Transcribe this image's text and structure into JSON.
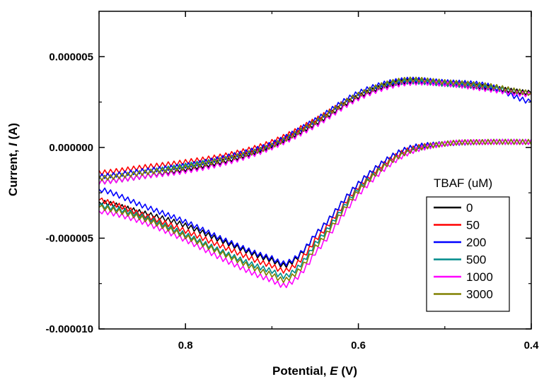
{
  "chart_data": {
    "type": "line",
    "xlabel": {
      "prefix": "Potential, ",
      "symbol": "E",
      "suffix": " (V)"
    },
    "ylabel": {
      "prefix": "Current, ",
      "symbol": "I",
      "suffix": " (A)"
    },
    "xlim": [
      0.9,
      0.4
    ],
    "ylim": [
      -1e-05,
      7.5e-06
    ],
    "x_ticks": [
      {
        "value": 0.8,
        "label": "0.8"
      },
      {
        "value": 0.6,
        "label": "0.6"
      },
      {
        "value": 0.4,
        "label": "0.4"
      }
    ],
    "y_ticks": [
      {
        "value": 5e-06,
        "label": "0.000005"
      },
      {
        "value": 0.0,
        "label": "0.000000"
      },
      {
        "value": -5e-06,
        "label": "-0.000005"
      },
      {
        "value": -1e-05,
        "label": "-0.000010"
      }
    ],
    "legend": {
      "title": "TBAF (uM)",
      "position": "right"
    },
    "series": [
      {
        "name": "0",
        "color": "#000000",
        "forward": [
          [
            0.9,
            -1.9e-06
          ],
          [
            0.85,
            -1.6e-06
          ],
          [
            0.8,
            -1.2e-06
          ],
          [
            0.75,
            -7e-07
          ],
          [
            0.7,
            1e-07
          ],
          [
            0.65,
            1.3e-06
          ],
          [
            0.6,
            2.8e-06
          ],
          [
            0.55,
            3.6e-06
          ],
          [
            0.5,
            3.5e-06
          ],
          [
            0.45,
            3.3e-06
          ],
          [
            0.4,
            3e-06
          ]
        ],
        "reverse": [
          [
            0.4,
            3e-07
          ],
          [
            0.45,
            3e-07
          ],
          [
            0.5,
            2e-07
          ],
          [
            0.55,
            -2e-07
          ],
          [
            0.6,
            -2e-06
          ],
          [
            0.65,
            -4.8e-06
          ],
          [
            0.68,
            -6.4e-06
          ],
          [
            0.7,
            -6.2e-06
          ],
          [
            0.75,
            -5.3e-06
          ],
          [
            0.8,
            -4.3e-06
          ],
          [
            0.85,
            -3.6e-06
          ],
          [
            0.9,
            -3e-06
          ]
        ]
      },
      {
        "name": "50",
        "color": "#ff0000",
        "forward": [
          [
            0.9,
            -1.4e-06
          ],
          [
            0.85,
            -1.1e-06
          ],
          [
            0.8,
            -8e-07
          ],
          [
            0.75,
            -4e-07
          ],
          [
            0.7,
            3e-07
          ],
          [
            0.65,
            1.5e-06
          ],
          [
            0.6,
            2.9e-06
          ],
          [
            0.55,
            3.6e-06
          ],
          [
            0.5,
            3.5e-06
          ],
          [
            0.45,
            3.3e-06
          ],
          [
            0.4,
            3e-06
          ]
        ],
        "reverse": [
          [
            0.4,
            3e-07
          ],
          [
            0.45,
            3e-07
          ],
          [
            0.5,
            2e-07
          ],
          [
            0.55,
            -3e-07
          ],
          [
            0.6,
            -2.2e-06
          ],
          [
            0.65,
            -5.1e-06
          ],
          [
            0.68,
            -6.7e-06
          ],
          [
            0.7,
            -6.5e-06
          ],
          [
            0.75,
            -5.6e-06
          ],
          [
            0.8,
            -4.6e-06
          ],
          [
            0.85,
            -3.7e-06
          ],
          [
            0.9,
            -2.9e-06
          ]
        ]
      },
      {
        "name": "200",
        "color": "#0000ff",
        "forward": [
          [
            0.9,
            -1.6e-06
          ],
          [
            0.85,
            -1.3e-06
          ],
          [
            0.8,
            -1e-06
          ],
          [
            0.75,
            -5e-07
          ],
          [
            0.7,
            2e-07
          ],
          [
            0.65,
            1.5e-06
          ],
          [
            0.6,
            3e-06
          ],
          [
            0.55,
            3.7e-06
          ],
          [
            0.5,
            3.6e-06
          ],
          [
            0.45,
            3.4e-06
          ],
          [
            0.4,
            2.5e-06
          ]
        ],
        "reverse": [
          [
            0.4,
            3e-07
          ],
          [
            0.45,
            3e-07
          ],
          [
            0.5,
            2e-07
          ],
          [
            0.55,
            -2e-07
          ],
          [
            0.6,
            -2e-06
          ],
          [
            0.65,
            -4.8e-06
          ],
          [
            0.68,
            -6.3e-06
          ],
          [
            0.7,
            -6.1e-06
          ],
          [
            0.75,
            -5.2e-06
          ],
          [
            0.8,
            -4.1e-06
          ],
          [
            0.85,
            -3.2e-06
          ],
          [
            0.9,
            -2.3e-06
          ]
        ]
      },
      {
        "name": "500",
        "color": "#008b8b",
        "forward": [
          [
            0.9,
            -1.7e-06
          ],
          [
            0.85,
            -1.4e-06
          ],
          [
            0.8,
            -1e-06
          ],
          [
            0.75,
            -6e-07
          ],
          [
            0.7,
            1e-07
          ],
          [
            0.65,
            1.4e-06
          ],
          [
            0.6,
            2.9e-06
          ],
          [
            0.55,
            3.6e-06
          ],
          [
            0.5,
            3.5e-06
          ],
          [
            0.45,
            3.3e-06
          ],
          [
            0.4,
            3e-06
          ]
        ],
        "reverse": [
          [
            0.4,
            3e-07
          ],
          [
            0.45,
            3e-07
          ],
          [
            0.5,
            2e-07
          ],
          [
            0.55,
            -4e-07
          ],
          [
            0.6,
            -2.3e-06
          ],
          [
            0.65,
            -5.3e-06
          ],
          [
            0.68,
            -7e-06
          ],
          [
            0.7,
            -6.8e-06
          ],
          [
            0.75,
            -5.9e-06
          ],
          [
            0.8,
            -4.8e-06
          ],
          [
            0.85,
            -3.8e-06
          ],
          [
            0.9,
            -3.2e-06
          ]
        ]
      },
      {
        "name": "1000",
        "color": "#ff00ff",
        "forward": [
          [
            0.9,
            -1.9e-06
          ],
          [
            0.85,
            -1.6e-06
          ],
          [
            0.8,
            -1.3e-06
          ],
          [
            0.75,
            -8e-07
          ],
          [
            0.7,
            0.0
          ],
          [
            0.65,
            1.2e-06
          ],
          [
            0.6,
            2.7e-06
          ],
          [
            0.55,
            3.5e-06
          ],
          [
            0.5,
            3.5e-06
          ],
          [
            0.45,
            3.2e-06
          ],
          [
            0.4,
            2.9e-06
          ]
        ],
        "reverse": [
          [
            0.4,
            3e-07
          ],
          [
            0.45,
            3e-07
          ],
          [
            0.5,
            2e-07
          ],
          [
            0.55,
            -5e-07
          ],
          [
            0.6,
            -2.6e-06
          ],
          [
            0.65,
            -5.8e-06
          ],
          [
            0.68,
            -7.5e-06
          ],
          [
            0.7,
            -7.3e-06
          ],
          [
            0.75,
            -6.3e-06
          ],
          [
            0.8,
            -5.1e-06
          ],
          [
            0.85,
            -4.1e-06
          ],
          [
            0.9,
            -3.5e-06
          ]
        ]
      },
      {
        "name": "3000",
        "color": "#808000",
        "forward": [
          [
            0.9,
            -1.7e-06
          ],
          [
            0.85,
            -1.4e-06
          ],
          [
            0.8,
            -1.1e-06
          ],
          [
            0.75,
            -6e-07
          ],
          [
            0.7,
            1e-07
          ],
          [
            0.65,
            1.4e-06
          ],
          [
            0.6,
            2.9e-06
          ],
          [
            0.55,
            3.7e-06
          ],
          [
            0.5,
            3.6e-06
          ],
          [
            0.45,
            3.4e-06
          ],
          [
            0.4,
            3e-06
          ]
        ],
        "reverse": [
          [
            0.4,
            3e-07
          ],
          [
            0.45,
            3e-07
          ],
          [
            0.5,
            2e-07
          ],
          [
            0.55,
            -4e-07
          ],
          [
            0.6,
            -2.4e-06
          ],
          [
            0.65,
            -5.5e-06
          ],
          [
            0.68,
            -7.2e-06
          ],
          [
            0.7,
            -7e-06
          ],
          [
            0.75,
            -6e-06
          ],
          [
            0.8,
            -4.9e-06
          ],
          [
            0.85,
            -3.9e-06
          ],
          [
            0.9,
            -3.3e-06
          ]
        ]
      }
    ]
  }
}
